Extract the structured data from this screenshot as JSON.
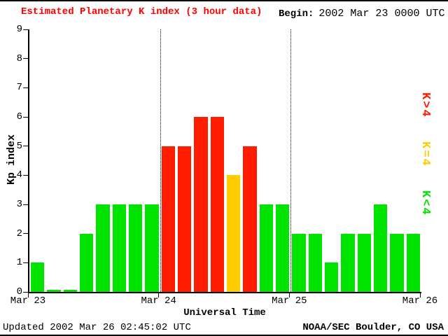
{
  "title": "Estimated Planetary K index (3 hour data)",
  "begin": {
    "label": "Begin:",
    "value": "2002 Mar 23 0000 UTC"
  },
  "footer": {
    "updated": "Updated 2002 Mar 26 02:45:02 UTC",
    "source": "NOAA/SEC Boulder, CO USA"
  },
  "legend": [
    {
      "label": "K>4",
      "color": "#ff1c00"
    },
    {
      "label": "K=4",
      "color": "#ffcc00"
    },
    {
      "label": "K<4",
      "color": "#00e400"
    }
  ],
  "chart_data": {
    "type": "bar",
    "title": "Estimated Planetary K index (3 hour data)",
    "xlabel": "Universal Time",
    "ylabel": "Kp index",
    "ylim": [
      0,
      9
    ],
    "yticks": [
      0,
      1,
      2,
      3,
      4,
      5,
      6,
      7,
      8,
      9
    ],
    "x_tick_labels": [
      "Mar 23",
      "Mar 24",
      "Mar 25",
      "Mar 26"
    ],
    "interval_hours": 3,
    "values": [
      1,
      0,
      0,
      2,
      3,
      3,
      3,
      3,
      5,
      5,
      6,
      6,
      4,
      5,
      3,
      3,
      2,
      2,
      1,
      2,
      2,
      3,
      2,
      2
    ],
    "day_boundaries": [
      8,
      16
    ],
    "colors": {
      "lt4": "#00e400",
      "eq4": "#ffcc00",
      "gt4": "#ff1c00"
    },
    "color_rule": "green K<4, yellow K=4, red K>4",
    "grid": "dotted vertical lines at day boundaries",
    "legend_position": "right, rotated"
  }
}
